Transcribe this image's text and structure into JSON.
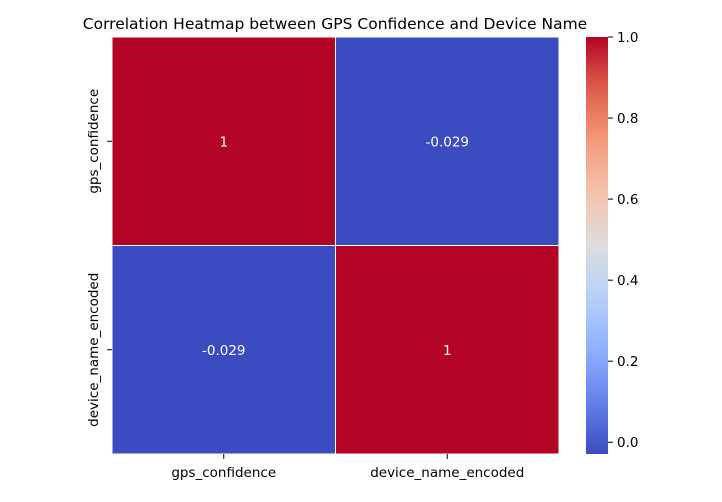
{
  "chart_data": {
    "type": "heatmap",
    "title": "Correlation Heatmap between GPS Confidence and Device Name",
    "xlabel": "",
    "ylabel": "",
    "row_labels": [
      "gps_confidence",
      "device_name_encoded"
    ],
    "col_labels": [
      "gps_confidence",
      "device_name_encoded"
    ],
    "values": [
      [
        1,
        -0.029
      ],
      [
        -0.029,
        1
      ]
    ],
    "cell_labels": [
      [
        "1",
        "-0.029"
      ],
      [
        "-0.029",
        "1"
      ]
    ],
    "colormap": "coolwarm",
    "colorbar": {
      "min": -0.029,
      "max": 1.0,
      "ticks": [
        0.0,
        0.2,
        0.4,
        0.6,
        0.8,
        1.0
      ],
      "tick_labels": [
        "0.0",
        "0.2",
        "0.4",
        "0.6",
        "0.8",
        "1.0"
      ],
      "placement": "right"
    },
    "grid": false,
    "colors": {
      "low": "#3b4cc0",
      "high": "#b40426",
      "cell_text": "#ffffff",
      "cell_border": "#ffffff"
    }
  }
}
